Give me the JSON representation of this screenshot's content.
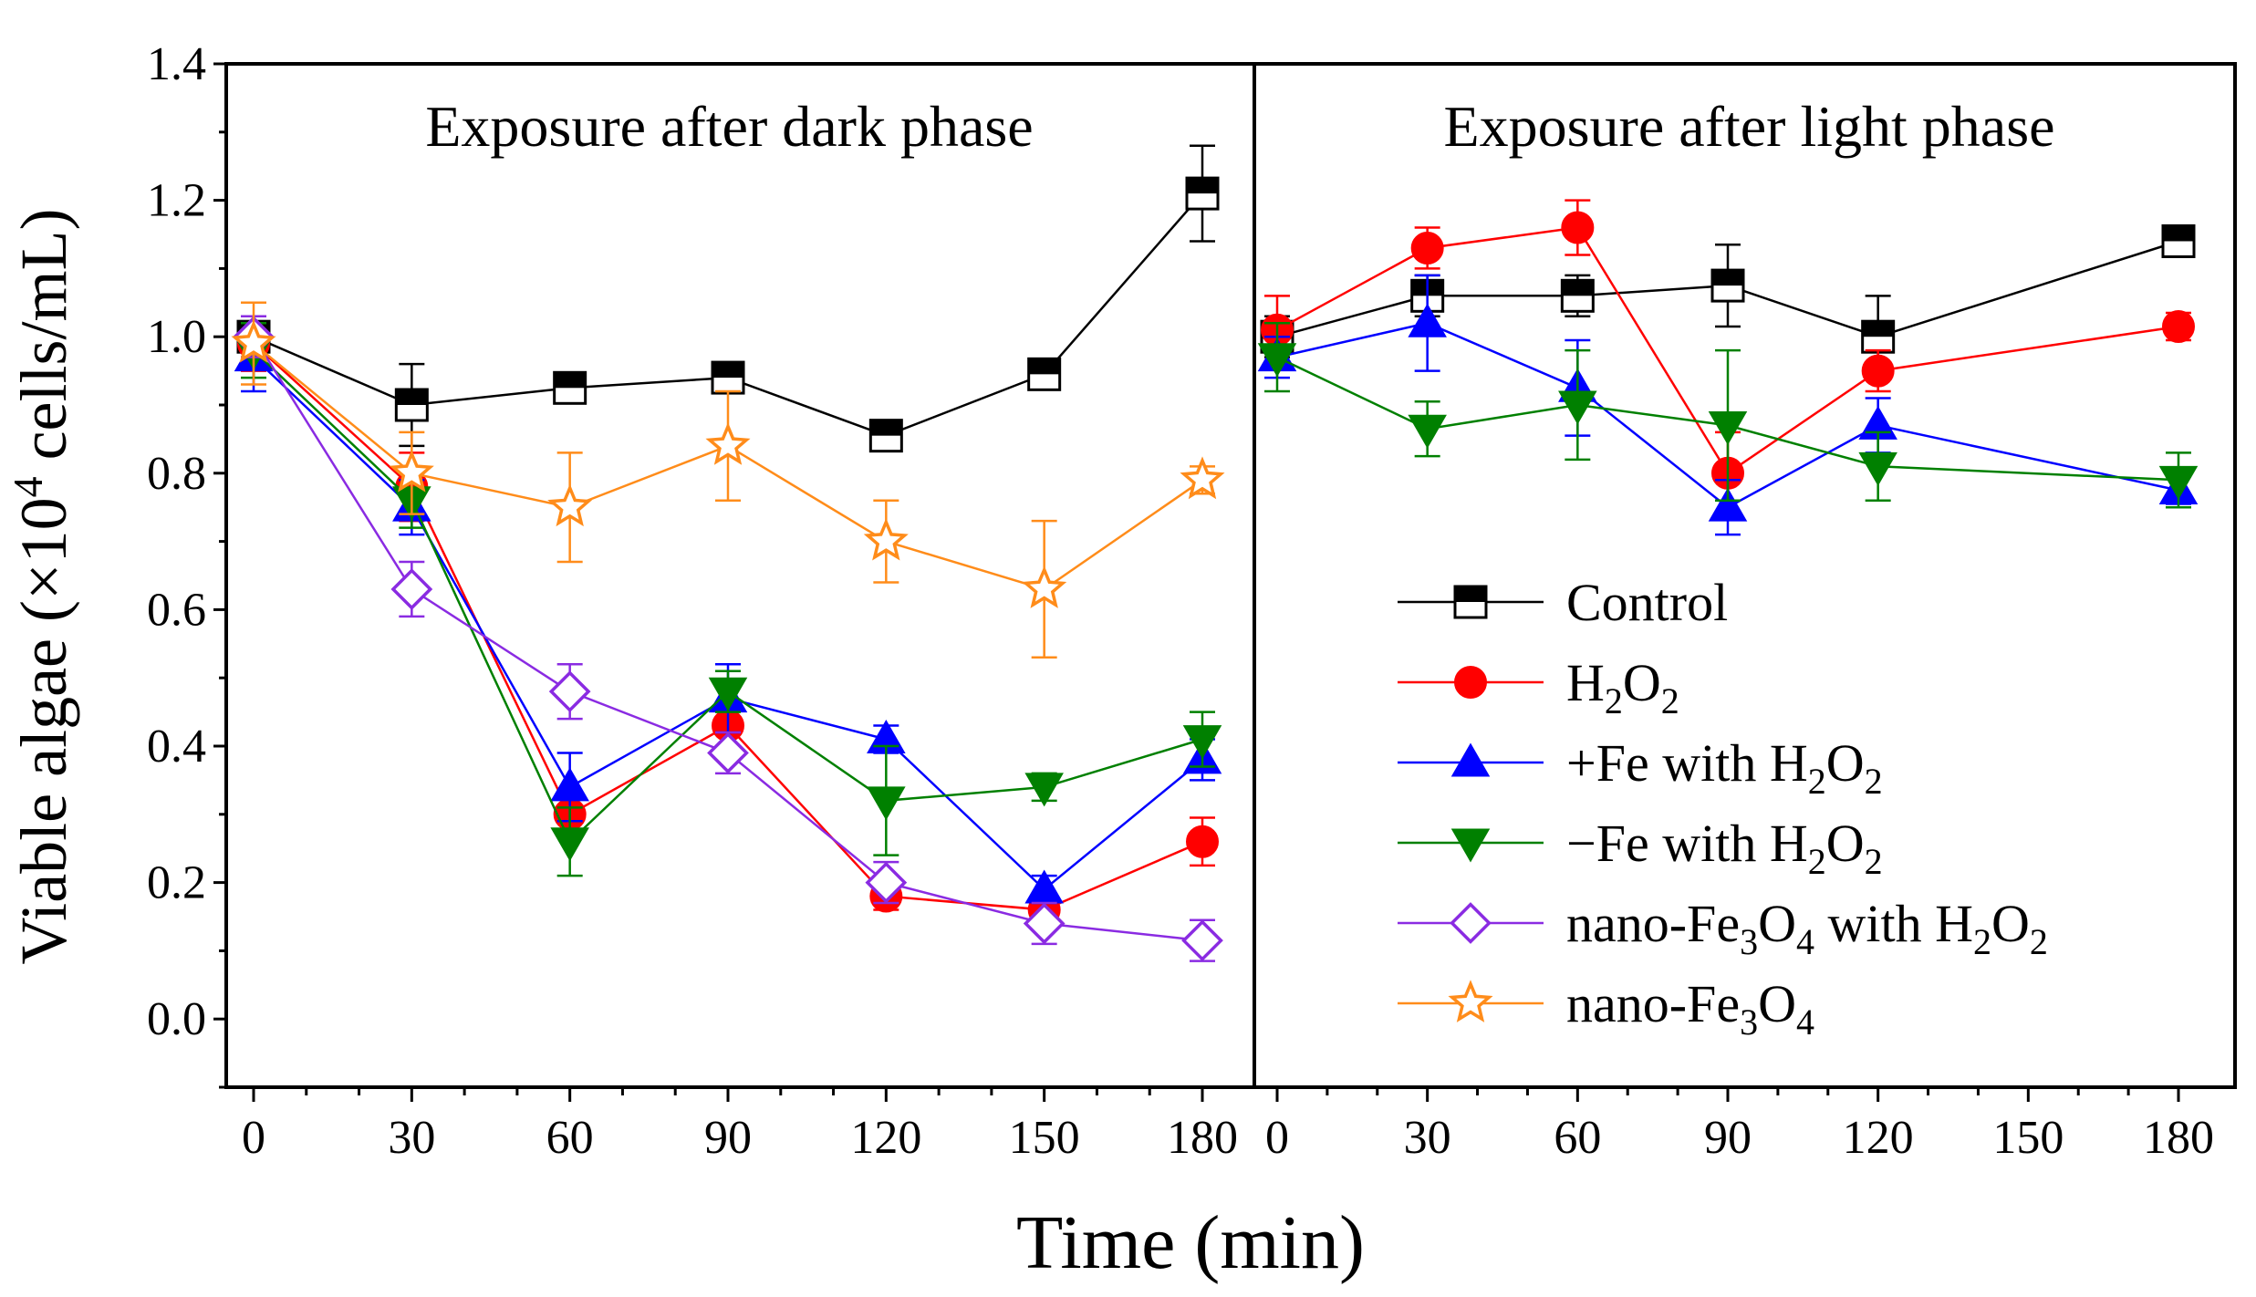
{
  "chart_data": {
    "type": "line",
    "xlabel": "Time (min)",
    "ylabel": {
      "prefix": "Viable algae (×10",
      "sup": "4",
      "suffix": " cells/mL)"
    },
    "ylim": [
      -0.1,
      1.4
    ],
    "yticks": [
      "0.0",
      "0.2",
      "0.4",
      "0.6",
      "0.8",
      "1.0",
      "1.2",
      "1.4"
    ],
    "legend_position": "center-right",
    "series": [
      {
        "key": "control",
        "marker": "square-half",
        "color": "#000000",
        "label": [
          {
            "t": "Control"
          }
        ]
      },
      {
        "key": "h2o2",
        "marker": "circle",
        "color": "#ff0000",
        "label": [
          {
            "t": "H"
          },
          {
            "t": "2",
            "sub": true
          },
          {
            "t": "O"
          },
          {
            "t": "2",
            "sub": true
          }
        ]
      },
      {
        "key": "plusfe",
        "marker": "triangle-up",
        "color": "#0000ff",
        "label": [
          {
            "t": "+Fe with H"
          },
          {
            "t": "2",
            "sub": true
          },
          {
            "t": "O"
          },
          {
            "t": "2",
            "sub": true
          }
        ]
      },
      {
        "key": "minusfe",
        "marker": "triangle-down",
        "color": "#008000",
        "label": [
          {
            "t": "−Fe with H"
          },
          {
            "t": "2",
            "sub": true
          },
          {
            "t": "O"
          },
          {
            "t": "2",
            "sub": true
          }
        ]
      },
      {
        "key": "nanoh2o2",
        "marker": "diamond-open",
        "color": "#8a2be2",
        "label": [
          {
            "t": "nano-Fe"
          },
          {
            "t": "3",
            "sub": true
          },
          {
            "t": "O"
          },
          {
            "t": "4",
            "sub": true
          },
          {
            "t": " with H"
          },
          {
            "t": "2",
            "sub": true
          },
          {
            "t": "O"
          },
          {
            "t": "2",
            "sub": true
          }
        ]
      },
      {
        "key": "nano",
        "marker": "star-open",
        "color": "#ff8c1a",
        "label": [
          {
            "t": "nano-Fe"
          },
          {
            "t": "3",
            "sub": true
          },
          {
            "t": "O"
          },
          {
            "t": "4",
            "sub": true
          }
        ]
      }
    ],
    "panels": [
      {
        "title": "Exposure after dark phase",
        "x": [
          0,
          30,
          60,
          90,
          120,
          150,
          180
        ],
        "xticks": [
          "0",
          "30",
          "60",
          "90",
          "120",
          "150",
          "180"
        ],
        "values": {
          "control": [
            1.0,
            0.9,
            0.925,
            0.94,
            0.855,
            0.945,
            1.21
          ],
          "h2o2": [
            0.99,
            0.78,
            0.3,
            0.43,
            0.18,
            0.16,
            0.26
          ],
          "plusfe": [
            0.97,
            0.75,
            0.34,
            0.47,
            0.41,
            0.19,
            0.38
          ],
          "minusfe": [
            0.98,
            0.76,
            0.26,
            0.48,
            0.32,
            0.34,
            0.41
          ],
          "nanoh2o2": [
            1.0,
            0.63,
            0.48,
            0.39,
            0.2,
            0.14,
            0.115
          ],
          "nano": [
            0.99,
            0.8,
            0.75,
            0.84,
            0.7,
            0.63,
            0.79
          ]
        },
        "errors": {
          "control": [
            0.03,
            0.06,
            0.02,
            0.02,
            0.02,
            0.02,
            0.07
          ],
          "h2o2": [
            0.04,
            0.05,
            0.03,
            0.03,
            0.02,
            0.02,
            0.035
          ],
          "plusfe": [
            0.05,
            0.04,
            0.05,
            0.05,
            0.02,
            0.02,
            0.03
          ],
          "minusfe": [
            0.04,
            0.04,
            0.05,
            0.03,
            0.08,
            0.02,
            0.04
          ],
          "nanoh2o2": [
            0.03,
            0.04,
            0.04,
            0.03,
            0.03,
            0.03,
            0.03
          ],
          "nano": [
            0.06,
            0.06,
            0.08,
            0.08,
            0.06,
            0.1,
            0.02
          ]
        }
      },
      {
        "title": "Exposure after light phase",
        "x": [
          0,
          30,
          60,
          90,
          120,
          180
        ],
        "xticks": [
          "0",
          "30",
          "60",
          "90",
          "120",
          "150",
          "180"
        ],
        "values": {
          "control": [
            1.0,
            1.06,
            1.06,
            1.075,
            1.0,
            1.14
          ],
          "h2o2": [
            1.01,
            1.13,
            1.16,
            0.8,
            0.95,
            1.015
          ],
          "plusfe": [
            0.97,
            1.02,
            0.925,
            0.75,
            0.87,
            0.775
          ],
          "minusfe": [
            0.97,
            0.865,
            0.9,
            0.87,
            0.81,
            0.79
          ],
          "nanoh2o2": null,
          "nano": null
        },
        "errors": {
          "control": [
            0.03,
            0.03,
            0.03,
            0.06,
            0.06,
            0.02
          ],
          "h2o2": [
            0.05,
            0.03,
            0.04,
            0.06,
            0.03,
            0.02
          ],
          "plusfe": [
            0.03,
            0.07,
            0.07,
            0.04,
            0.04,
            0.02
          ],
          "minusfe": [
            0.05,
            0.04,
            0.08,
            0.11,
            0.05,
            0.04
          ],
          "nanoh2o2": null,
          "nano": null
        }
      }
    ]
  }
}
